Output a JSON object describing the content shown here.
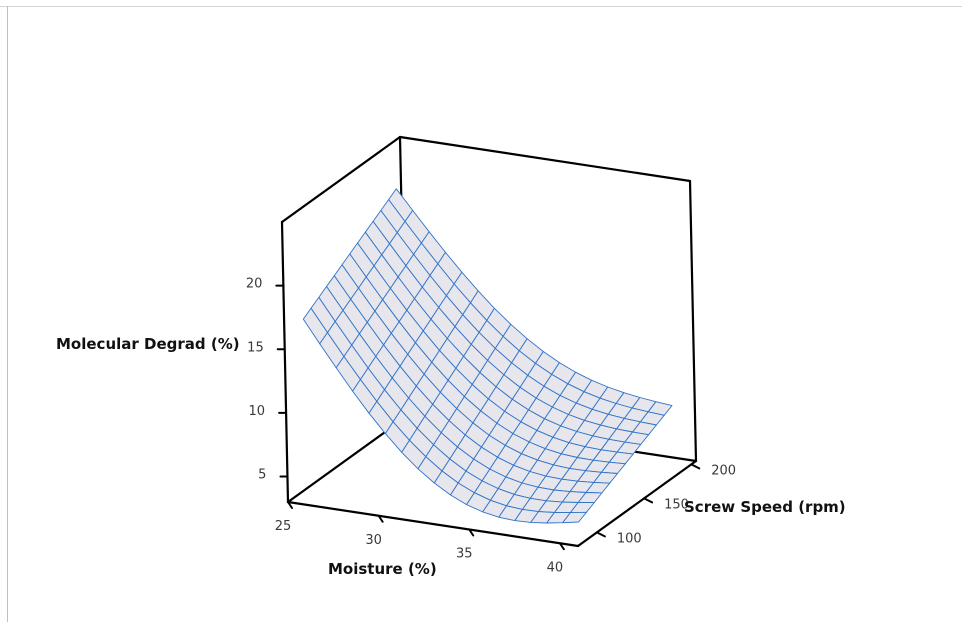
{
  "chart_data": {
    "type": "surface",
    "title": "",
    "zlabel": "Molecular Degrad (%)",
    "xlabel": "Moisture (%)",
    "ylabel": "Screw Speed (rpm)",
    "x_ticks": [
      25,
      30,
      35,
      40
    ],
    "y_ticks": [
      100,
      150,
      200
    ],
    "z_ticks": [
      5,
      10,
      15,
      20
    ],
    "x_range": [
      25,
      41
    ],
    "y_range": [
      80,
      205
    ],
    "z_range": [
      3,
      25
    ],
    "grid": false,
    "surface_color": "#e6e6ec",
    "mesh_color": "#2f73c9",
    "corner_values": {
      "moisture_25_speed_100": 16.3,
      "moisture_25_speed_200": 21.2,
      "moisture_40_speed_100": 3.6,
      "moisture_40_speed_200": 7.4
    },
    "minimum": {
      "moisture": 39,
      "speed": 100,
      "value": 3.5
    }
  }
}
